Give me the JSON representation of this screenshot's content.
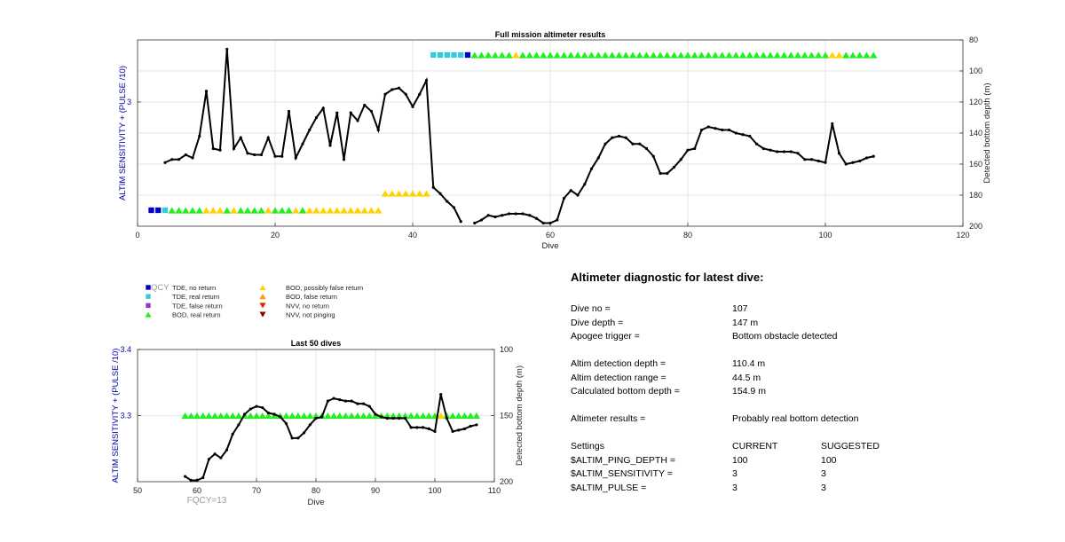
{
  "chart_data": [
    {
      "type": "line",
      "title": "Full mission altimeter results",
      "xlabel": "Dive",
      "ylabel_left": "ALTIM SENSITIVITY + (PULSE /10)",
      "ylabel_right": "Detected bottom depth (m)",
      "xlim": [
        0,
        120
      ],
      "ylim_right": [
        200,
        80
      ],
      "xticks": [
        0,
        20,
        40,
        60,
        80,
        100,
        120
      ],
      "yticks_left": [
        3
      ],
      "yticks_right": [
        80,
        100,
        120,
        140,
        160,
        180,
        200
      ],
      "grid": true,
      "series": [
        {
          "name": "Detected bottom depth (m)",
          "color": "#000000",
          "points": [
            [
              4,
              159
            ],
            [
              5,
              157
            ],
            [
              6,
              157
            ],
            [
              7,
              154
            ],
            [
              8,
              156
            ],
            [
              9,
              142
            ],
            [
              10,
              113
            ],
            [
              11,
              150
            ],
            [
              12,
              151
            ],
            [
              13,
              86
            ],
            [
              14,
              150
            ],
            [
              15,
              143
            ],
            [
              16,
              153
            ],
            [
              17,
              154
            ],
            [
              18,
              154
            ],
            [
              19,
              143
            ],
            [
              20,
              155
            ],
            [
              21,
              155
            ],
            [
              22,
              126
            ],
            [
              23,
              156
            ],
            [
              24,
              147
            ],
            [
              25,
              138
            ],
            [
              26,
              130
            ],
            [
              27,
              124
            ],
            [
              28,
              148
            ],
            [
              29,
              127
            ],
            [
              30,
              157
            ],
            [
              31,
              127
            ],
            [
              32,
              132
            ],
            [
              33,
              122
            ],
            [
              34,
              126
            ],
            [
              35,
              138
            ],
            [
              36,
              115
            ],
            [
              37,
              112
            ],
            [
              38,
              111
            ],
            [
              39,
              115
            ],
            [
              40,
              123
            ],
            [
              41,
              115
            ],
            [
              42,
              106
            ],
            [
              43,
              175
            ],
            [
              44,
              179
            ],
            [
              45,
              184
            ],
            [
              46,
              188
            ],
            [
              47,
              197
            ]
          ]
        },
        {
          "name": "Detected bottom depth (m)",
          "color": "#000000",
          "points": [
            [
              49,
              198
            ],
            [
              50,
              196
            ],
            [
              51,
              193
            ],
            [
              52,
              194
            ],
            [
              53,
              193
            ],
            [
              54,
              192
            ],
            [
              55,
              192
            ],
            [
              56,
              192
            ],
            [
              57,
              193
            ],
            [
              58,
              195
            ],
            [
              59,
              198
            ],
            [
              60,
              198
            ],
            [
              61,
              196
            ],
            [
              62,
              182
            ],
            [
              63,
              177
            ],
            [
              64,
              180
            ],
            [
              65,
              173
            ],
            [
              66,
              163
            ],
            [
              67,
              156
            ],
            [
              68,
              147
            ],
            [
              69,
              143
            ],
            [
              70,
              142
            ],
            [
              71,
              143
            ],
            [
              72,
              147
            ],
            [
              73,
              147
            ],
            [
              74,
              150
            ],
            [
              75,
              155
            ],
            [
              76,
              166
            ],
            [
              77,
              166
            ],
            [
              78,
              162
            ],
            [
              79,
              157
            ],
            [
              80,
              151
            ],
            [
              81,
              150
            ],
            [
              82,
              138
            ],
            [
              83,
              136
            ],
            [
              84,
              137
            ],
            [
              85,
              138
            ],
            [
              86,
              138
            ],
            [
              87,
              140
            ],
            [
              88,
              141
            ],
            [
              89,
              142
            ],
            [
              90,
              147
            ],
            [
              91,
              150
            ],
            [
              92,
              151
            ],
            [
              93,
              152
            ],
            [
              94,
              152
            ],
            [
              95,
              152
            ],
            [
              96,
              153
            ],
            [
              97,
              157
            ],
            [
              98,
              157
            ],
            [
              99,
              158
            ],
            [
              100,
              159
            ],
            [
              101,
              134
            ],
            [
              102,
              153
            ],
            [
              103,
              160
            ],
            [
              104,
              159
            ],
            [
              105,
              158
            ],
            [
              106,
              156
            ],
            [
              107,
              155
            ]
          ]
        }
      ],
      "markers": [
        {
          "name": "TDE, no return",
          "color": "#0000cc",
          "symbol": "square",
          "row": "low",
          "dives": [
            2,
            3
          ]
        },
        {
          "name": "TDE, real return",
          "color": "#33ccdd",
          "symbol": "square",
          "row": "low",
          "dives": [
            4
          ]
        },
        {
          "name": "BOD, real return",
          "color": "#22ee22",
          "symbol": "triangle",
          "row": "low",
          "dives": [
            5,
            6,
            7,
            8,
            9,
            13,
            15,
            16,
            17,
            18,
            20,
            21,
            22,
            24
          ]
        },
        {
          "name": "BOD, possibly false return",
          "color": "#ffd200",
          "symbol": "triangle",
          "row": "low",
          "dives": [
            10,
            11,
            12,
            14,
            19,
            23,
            25,
            26,
            27,
            28,
            29,
            30,
            31,
            32,
            33,
            34,
            35
          ]
        },
        {
          "name": "BOD, possibly false return",
          "color": "#ffd200",
          "symbol": "triangle",
          "row": "mid",
          "dives": [
            36,
            37,
            38,
            39,
            40,
            41,
            42
          ]
        },
        {
          "name": "TDE, real return",
          "color": "#33ccdd",
          "symbol": "square",
          "row": "high",
          "dives": [
            43,
            44,
            45,
            46,
            47
          ]
        },
        {
          "name": "TDE, no return",
          "color": "#0000cc",
          "symbol": "square",
          "row": "high",
          "dives": [
            48
          ]
        },
        {
          "name": "BOD, real return",
          "color": "#22ee22",
          "symbol": "triangle",
          "row": "high",
          "dives": [
            49,
            50,
            51,
            52,
            53,
            54,
            56,
            57,
            58,
            59,
            60,
            61,
            62,
            63,
            64,
            65,
            66,
            67,
            68,
            69,
            70,
            71,
            72,
            73,
            74,
            75,
            76,
            77,
            78,
            79,
            80,
            81,
            82,
            83,
            84,
            85,
            86,
            87,
            88,
            89,
            90,
            91,
            92,
            93,
            94,
            95,
            96,
            97,
            98,
            99,
            100,
            103,
            104,
            105,
            106,
            107
          ]
        },
        {
          "name": "BOD, possibly false return",
          "color": "#ffd200",
          "symbol": "triangle",
          "row": "high",
          "dives": [
            55,
            101,
            102
          ]
        }
      ]
    },
    {
      "type": "line",
      "title": "Last 50 dives",
      "xlabel": "Dive",
      "ylabel_left": "ALTIM SENSITIVITY + (PULSE /10)",
      "ylabel_right": "Detected bottom depth (m)",
      "xlim": [
        50,
        110
      ],
      "ylim_left": [
        3.2,
        3.4
      ],
      "ylim_right": [
        200,
        100
      ],
      "xticks": [
        50,
        60,
        70,
        80,
        90,
        100,
        110
      ],
      "yticks_left": [
        3.3,
        3.4
      ],
      "yticks_right": [
        100,
        150,
        200
      ],
      "grid": true,
      "series": [
        {
          "name": "Detected bottom depth (m)",
          "color": "#000000",
          "points": [
            [
              58,
              196
            ],
            [
              59,
              199
            ],
            [
              60,
              199
            ],
            [
              61,
              197
            ],
            [
              62,
              183
            ],
            [
              63,
              179
            ],
            [
              64,
              182
            ],
            [
              65,
              176
            ],
            [
              66,
              164
            ],
            [
              67,
              157
            ],
            [
              68,
              149
            ],
            [
              69,
              145
            ],
            [
              70,
              143
            ],
            [
              71,
              144
            ],
            [
              72,
              148
            ],
            [
              73,
              149
            ],
            [
              74,
              151
            ],
            [
              75,
              156
            ],
            [
              76,
              167
            ],
            [
              77,
              167
            ],
            [
              78,
              163
            ],
            [
              79,
              157
            ],
            [
              80,
              152
            ],
            [
              81,
              151
            ],
            [
              82,
              139
            ],
            [
              83,
              137
            ],
            [
              84,
              138
            ],
            [
              85,
              139
            ],
            [
              86,
              139
            ],
            [
              87,
              141
            ],
            [
              88,
              141
            ],
            [
              89,
              143
            ],
            [
              90,
              149
            ],
            [
              91,
              151
            ],
            [
              92,
              152
            ],
            [
              93,
              152
            ],
            [
              94,
              152
            ],
            [
              95,
              152
            ],
            [
              96,
              159
            ],
            [
              97,
              159
            ],
            [
              98,
              159
            ],
            [
              99,
              160
            ],
            [
              100,
              162
            ],
            [
              101,
              134
            ],
            [
              102,
              152
            ],
            [
              103,
              162
            ],
            [
              104,
              161
            ],
            [
              105,
              160
            ],
            [
              106,
              158
            ],
            [
              107,
              157
            ]
          ]
        }
      ],
      "markers": [
        {
          "name": "BOD, real return",
          "color": "#22ee22",
          "symbol": "triangle",
          "value": 3.3,
          "dives": [
            58,
            59,
            60,
            61,
            62,
            63,
            64,
            65,
            66,
            67,
            68,
            69,
            70,
            71,
            72,
            73,
            74,
            75,
            76,
            77,
            78,
            79,
            80,
            81,
            82,
            83,
            84,
            85,
            86,
            87,
            88,
            89,
            90,
            91,
            92,
            93,
            94,
            95,
            96,
            97,
            98,
            99,
            100,
            102,
            103,
            104,
            105,
            106,
            107
          ]
        },
        {
          "name": "BOD, possibly false return",
          "color": "#ffd200",
          "symbol": "triangle",
          "value": 3.3,
          "dives": [
            101
          ]
        }
      ],
      "annotation": "FQCY=13"
    }
  ],
  "legend": {
    "overlay_text": "QCY",
    "items": [
      {
        "label": "TDE, no return",
        "color": "#0000cc",
        "symbol": "square"
      },
      {
        "label": "TDE, real return",
        "color": "#33ccdd",
        "symbol": "square"
      },
      {
        "label": "TDE, false return",
        "color": "#9933cc",
        "symbol": "square"
      },
      {
        "label": "BOD, real return",
        "color": "#22ee22",
        "symbol": "triangle-up"
      },
      {
        "label": "BOD, possibly false return",
        "color": "#ffd200",
        "symbol": "triangle-up"
      },
      {
        "label": "BOD, false return",
        "color": "#ff9900",
        "symbol": "triangle-up"
      },
      {
        "label": "NVV, no return",
        "color": "#dd2200",
        "symbol": "triangle-down"
      },
      {
        "label": "NVV, not pinging",
        "color": "#8b0000",
        "symbol": "triangle-down"
      }
    ]
  },
  "diagnostic": {
    "title": "Altimeter diagnostic for latest dive:",
    "dive_no_label": "Dive no =",
    "dive_no": "107",
    "dive_depth_label": "Dive depth =",
    "dive_depth": "147 m",
    "apogee_label": "Apogee trigger =",
    "apogee": "Bottom obstacle detected",
    "detect_depth_label": "Altim detection depth =",
    "detect_depth": "110.4 m",
    "detect_range_label": "Altim detection range =",
    "detect_range": "44.5 m",
    "calc_depth_label": "Calculated bottom depth =",
    "calc_depth": "154.9 m",
    "results_label": "Altimeter results =",
    "results": "Probably real bottom detection",
    "settings_label": "Settings",
    "current_label": "CURRENT",
    "suggested_label": "SUGGESTED",
    "ping_depth_label": "$ALTIM_PING_DEPTH =",
    "ping_depth_current": "100",
    "ping_depth_suggested": "100",
    "sensitivity_label": "$ALTIM_SENSITIVITY =",
    "sensitivity_current": "3",
    "sensitivity_suggested": "3",
    "pulse_label": "$ALTIM_PULSE =",
    "pulse_current": "3",
    "pulse_suggested": "3"
  }
}
